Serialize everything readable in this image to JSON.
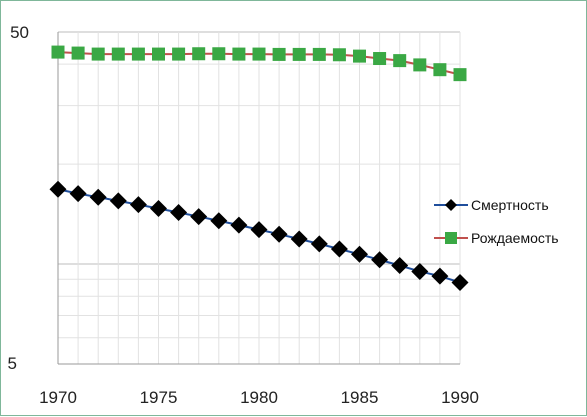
{
  "chart_data": {
    "type": "line",
    "x": [
      1970,
      1971,
      1972,
      1973,
      1974,
      1975,
      1976,
      1977,
      1978,
      1979,
      1980,
      1981,
      1982,
      1983,
      1984,
      1985,
      1986,
      1987,
      1988,
      1989,
      1990
    ],
    "xlim": [
      1970,
      1990
    ],
    "xticks": [
      "1970",
      "1975",
      "1980",
      "1985",
      "1990"
    ],
    "ylim": [
      5,
      50
    ],
    "ytick_labels": [
      "50",
      "5"
    ],
    "yscale": "log",
    "grid": true,
    "legend_position": "right",
    "series": [
      {
        "name": "Смертность",
        "marker": "diamond",
        "marker_color": "#000000",
        "line_color": "#1f4e9c",
        "values": [
          16.8,
          16.3,
          15.9,
          15.5,
          15.1,
          14.7,
          14.3,
          13.9,
          13.5,
          13.1,
          12.7,
          12.3,
          11.9,
          11.5,
          11.1,
          10.7,
          10.3,
          9.9,
          9.5,
          9.2,
          8.8
        ]
      },
      {
        "name": "Рождаемость",
        "marker": "square",
        "marker_color": "#3aa844",
        "line_color": "#c0504d",
        "values": [
          43.5,
          43.2,
          42.9,
          42.9,
          42.9,
          42.9,
          42.9,
          43.0,
          43.0,
          42.9,
          42.9,
          42.8,
          42.8,
          42.8,
          42.7,
          42.3,
          41.6,
          41.0,
          39.8,
          38.5,
          37.2
        ]
      }
    ]
  }
}
